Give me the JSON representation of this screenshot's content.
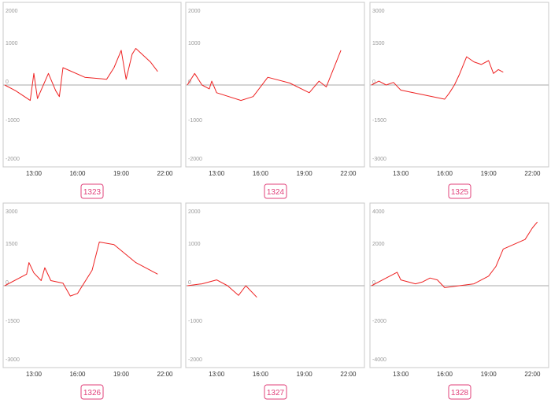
{
  "colors": {
    "line": "#ee2222",
    "badge": "#e0407a",
    "frame": "#c8c8c8",
    "zero": "#aaaaaa"
  },
  "chart_data": [
    {
      "type": "line",
      "label": "1323",
      "xticks": [
        "13:00",
        "16:00",
        "19:00",
        "22:00"
      ],
      "yticks": [
        2000,
        1000,
        0,
        -1000,
        -2000
      ],
      "ylim": [
        -2000,
        2000
      ],
      "y": [
        0,
        -150,
        -400,
        300,
        -350,
        300,
        -150,
        -300,
        450,
        200,
        150,
        450,
        900,
        150,
        800,
        950,
        600,
        350
      ],
      "x": [
        "11:00",
        "11:45",
        "12:45",
        "13:00",
        "13:15",
        "14:00",
        "14:30",
        "14:45",
        "15:00",
        "16:30",
        "18:00",
        "18:30",
        "19:00",
        "19:20",
        "19:45",
        "20:00",
        "21:00",
        "21:30"
      ]
    },
    {
      "type": "line",
      "label": "1324",
      "xticks": [
        "13:00",
        "16:00",
        "19:00",
        "22:00"
      ],
      "yticks": [
        2000,
        1000,
        0,
        -1000,
        -2000
      ],
      "ylim": [
        -2000,
        2000
      ],
      "y": [
        0,
        300,
        0,
        -100,
        100,
        -200,
        -400,
        -300,
        200,
        50,
        -200,
        100,
        -50,
        900
      ],
      "x": [
        "11:00",
        "11:30",
        "12:00",
        "12:30",
        "12:40",
        "13:00",
        "14:40",
        "15:30",
        "16:30",
        "18:00",
        "19:20",
        "20:00",
        "20:30",
        "21:30"
      ]
    },
    {
      "type": "line",
      "label": "1325",
      "xticks": [
        "13:00",
        "16:00",
        "19:00",
        "22:00"
      ],
      "yticks": [
        3000,
        1500,
        0,
        -1500,
        -3000
      ],
      "ylim": [
        -3000,
        3000
      ],
      "y": [
        0,
        150,
        0,
        100,
        -200,
        -550,
        -300,
        0,
        400,
        1100,
        900,
        800,
        950,
        450,
        600,
        500
      ],
      "x": [
        "11:00",
        "11:30",
        "12:00",
        "12:30",
        "13:00",
        "16:00",
        "16:20",
        "16:40",
        "17:00",
        "17:30",
        "18:00",
        "18:30",
        "19:00",
        "19:20",
        "19:40",
        "20:00"
      ]
    },
    {
      "type": "line",
      "label": "1326",
      "xticks": [
        "13:00",
        "16:00",
        "19:00",
        "22:00"
      ],
      "yticks": [
        3000,
        1500,
        0,
        -1500,
        -3000
      ],
      "ylim": [
        -3000,
        3000
      ],
      "y": [
        0,
        450,
        900,
        500,
        200,
        700,
        200,
        100,
        -400,
        -300,
        600,
        1700,
        1600,
        900,
        450
      ],
      "x": [
        "11:00",
        "12:30",
        "12:40",
        "13:00",
        "13:30",
        "13:45",
        "14:10",
        "15:00",
        "15:30",
        "16:00",
        "17:00",
        "17:30",
        "18:30",
        "20:00",
        "21:30"
      ]
    },
    {
      "type": "line",
      "label": "1327",
      "xticks": [
        "13:00",
        "16:00",
        "19:00",
        "22:00"
      ],
      "yticks": [
        2000,
        1000,
        0,
        -1000,
        -2000
      ],
      "ylim": [
        -2000,
        2000
      ],
      "y": [
        0,
        50,
        100,
        150,
        0,
        -250,
        0,
        -300
      ],
      "x": [
        "11:00",
        "12:00",
        "12:30",
        "13:00",
        "13:45",
        "14:30",
        "15:00",
        "15:45"
      ]
    },
    {
      "type": "line",
      "label": "1328",
      "xticks": [
        "13:00",
        "16:00",
        "19:00",
        "22:00"
      ],
      "yticks": [
        4000,
        2000,
        0,
        -2000,
        -4000
      ],
      "ylim": [
        -4000,
        4000
      ],
      "y": [
        0,
        400,
        700,
        300,
        100,
        200,
        400,
        300,
        -100,
        0,
        100,
        500,
        1000,
        1900,
        2400,
        3000,
        3300
      ],
      "x": [
        "11:00",
        "12:00",
        "12:45",
        "13:00",
        "14:00",
        "14:30",
        "15:00",
        "15:30",
        "16:00",
        "17:00",
        "18:00",
        "19:00",
        "19:30",
        "20:00",
        "21:30",
        "22:00",
        "22:20"
      ]
    }
  ]
}
